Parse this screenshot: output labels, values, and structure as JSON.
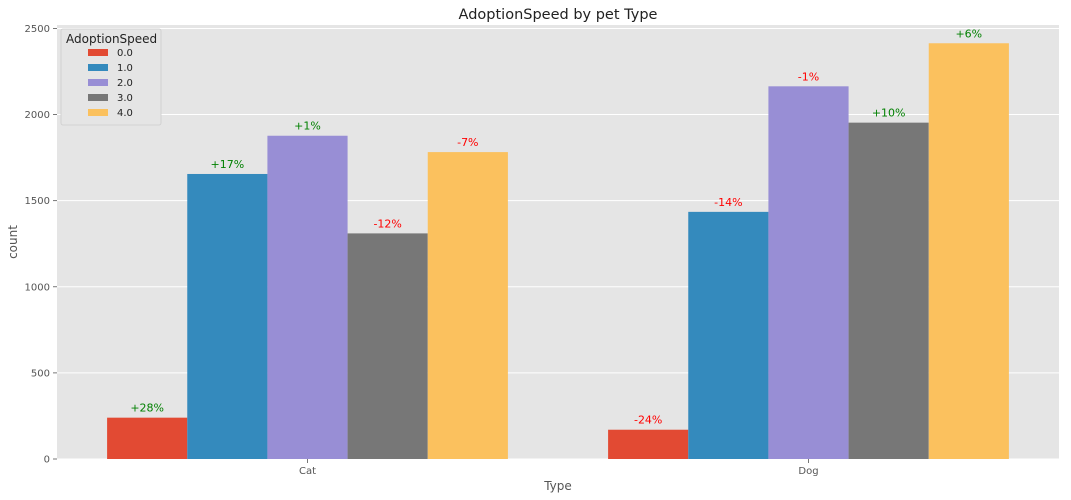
{
  "chart_data": {
    "type": "bar",
    "title": "AdoptionSpeed by pet Type",
    "xlabel": "Type",
    "ylabel": "count",
    "categories": [
      "Cat",
      "Dog"
    ],
    "ylim": [
      0,
      2520
    ],
    "yticks": [
      0,
      500,
      1000,
      1500,
      2000,
      2500
    ],
    "grid": true,
    "legend": {
      "title": "AdoptionSpeed",
      "placement": "top-left"
    },
    "series": [
      {
        "name": "0.0",
        "color": "#E24A33",
        "values": [
          240,
          170
        ],
        "labels": [
          "+28%",
          "-24%"
        ]
      },
      {
        "name": "1.0",
        "color": "#348ABD",
        "values": [
          1655,
          1435
        ],
        "labels": [
          "+17%",
          "-14%"
        ]
      },
      {
        "name": "2.0",
        "color": "#988ED5",
        "values": [
          1877,
          2164
        ],
        "labels": [
          "+1%",
          "-1%"
        ]
      },
      {
        "name": "3.0",
        "color": "#777777",
        "values": [
          1310,
          1953
        ],
        "labels": [
          "-12%",
          "+10%"
        ]
      },
      {
        "name": "4.0",
        "color": "#FBC15E",
        "values": [
          1782,
          2414
        ],
        "labels": [
          "-7%",
          "+6%"
        ]
      }
    ],
    "label_colors": {
      "positive": "#008000",
      "negative": "#FF0000"
    }
  }
}
